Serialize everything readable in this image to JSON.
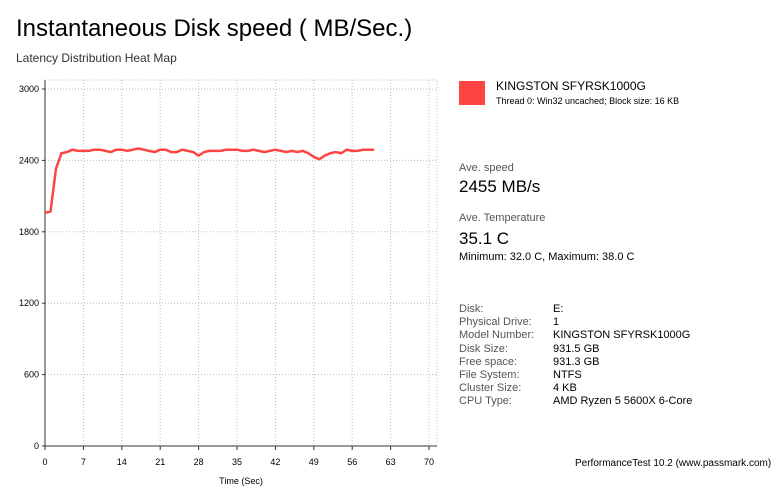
{
  "chart_data": {
    "type": "line",
    "title": "Instantaneous Disk speed ( MB/Sec.)",
    "subtitle": "Latency Distribution Heat Map",
    "x_label": "Time (Sec)",
    "x": [
      0,
      1,
      2,
      3,
      4,
      5,
      6,
      7,
      8,
      9,
      10,
      11,
      12,
      13,
      14,
      15,
      16,
      17,
      18,
      19,
      20,
      21,
      22,
      23,
      24,
      25,
      26,
      27,
      28,
      29,
      30,
      31,
      32,
      33,
      34,
      35,
      36,
      37,
      38,
      39,
      40,
      41,
      42,
      43,
      44,
      45,
      46,
      47,
      48,
      49,
      50,
      51,
      52,
      53,
      54,
      55,
      56,
      57,
      58,
      59,
      60
    ],
    "series": [
      {
        "name": "KINGSTON SFYRSK1000G",
        "color": "#ff4444",
        "values": [
          1960,
          1970,
          2330,
          2460,
          2470,
          2490,
          2480,
          2480,
          2480,
          2490,
          2490,
          2480,
          2470,
          2490,
          2490,
          2480,
          2490,
          2500,
          2490,
          2480,
          2470,
          2490,
          2490,
          2470,
          2470,
          2490,
          2480,
          2470,
          2440,
          2470,
          2480,
          2480,
          2480,
          2490,
          2490,
          2490,
          2480,
          2480,
          2490,
          2480,
          2470,
          2480,
          2490,
          2480,
          2470,
          2480,
          2470,
          2480,
          2460,
          2430,
          2410,
          2440,
          2460,
          2470,
          2460,
          2490,
          2480,
          2480,
          2490,
          2490,
          2490
        ]
      }
    ],
    "xlim": [
      0,
      70
    ],
    "ylim": [
      0,
      3000
    ],
    "xticks": [
      0,
      7,
      14,
      21,
      28,
      35,
      42,
      49,
      56,
      63,
      70
    ],
    "yticks": [
      0,
      600,
      1200,
      1800,
      2400,
      3000
    ],
    "grid": true
  },
  "panel": {
    "legend_detail": "Thread 0: Win32 uncached; Block size: 16 KB",
    "speed_label": "Ave. speed",
    "speed_value": "2455 MB/s",
    "temp_label": "Ave. Temperature",
    "temp_value": "35.1 C",
    "temp_range": "Minimum: 32.0 C, Maximum: 38.0 C",
    "info": [
      [
        "Disk:",
        "E:"
      ],
      [
        "Physical Drive:",
        "1"
      ],
      [
        "Model Number:",
        "KINGSTON SFYRSK1000G"
      ],
      [
        "Disk Size:",
        "931.5 GB"
      ],
      [
        "Free space:",
        "931.3 GB"
      ],
      [
        "File System:",
        "NTFS"
      ],
      [
        "Cluster Size:",
        "4 KB"
      ],
      [
        "CPU Type:",
        "AMD Ryzen 5 5600X 6-Core"
      ]
    ]
  },
  "footer": "PerformanceTest 10.2 (www.passmark.com)"
}
